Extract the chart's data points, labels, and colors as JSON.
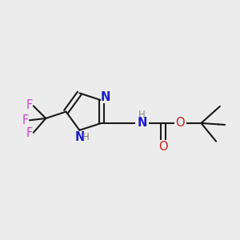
{
  "bg_color": "#ececec",
  "bond_color": "#1a1a1a",
  "n_color": "#1a1acc",
  "o_color": "#cc1a1a",
  "f_color": "#cc44cc",
  "line_width": 1.5,
  "font_size": 10.5,
  "small_font": 8.5,
  "fig_w": 3.0,
  "fig_h": 3.0,
  "dpi": 100,
  "xlim": [
    0,
    10
  ],
  "ylim": [
    0,
    10
  ]
}
